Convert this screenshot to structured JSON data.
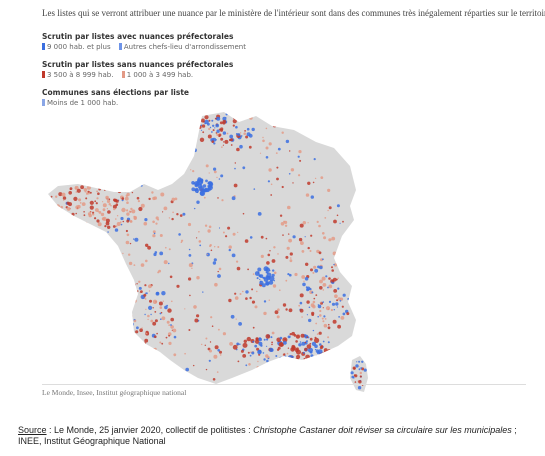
{
  "caption": "Les listes qui se verront attribuer une nuance par le ministère de l'intérieur sont dans des communes très inégalement réparties sur le territoire.",
  "legend": {
    "group1_title": "Scrutin par listes avec nuances préfectorales",
    "group1_items": [
      {
        "label": "9 000 hab. et plus",
        "color": "#3b6fe0"
      },
      {
        "label": "Autres chefs-lieu d'arrondissement",
        "color": "#6d93e8"
      }
    ],
    "group2_title": "Scrutin par listes sans nuances préfectorales",
    "group2_items": [
      {
        "label": "3 500 à 8 999 hab.",
        "color": "#c0392b"
      },
      {
        "label": "1 000 à 3 499 hab.",
        "color": "#e39a86"
      }
    ],
    "group3_title": "Communes sans élections par liste",
    "group3_items": [
      {
        "label": "Moins de 1 000 hab.",
        "color": "#8aa6e6"
      }
    ]
  },
  "map": {
    "base_color": "#d9d9d9",
    "colors": {
      "blue": "#3b6fe0",
      "red": "#c0392b",
      "pink": "#e39a86"
    }
  },
  "credit": "Le Monde, Insee, Institut géographique national",
  "source": {
    "label": "Source",
    "text_plain": " : Le Monde, 25 janvier 2020, collectif de politistes : ",
    "text_italic": "Christophe Castaner doit réviser sa circulaire sur les municipales",
    "text_end": " ; INEE, Institut Géographique National"
  }
}
